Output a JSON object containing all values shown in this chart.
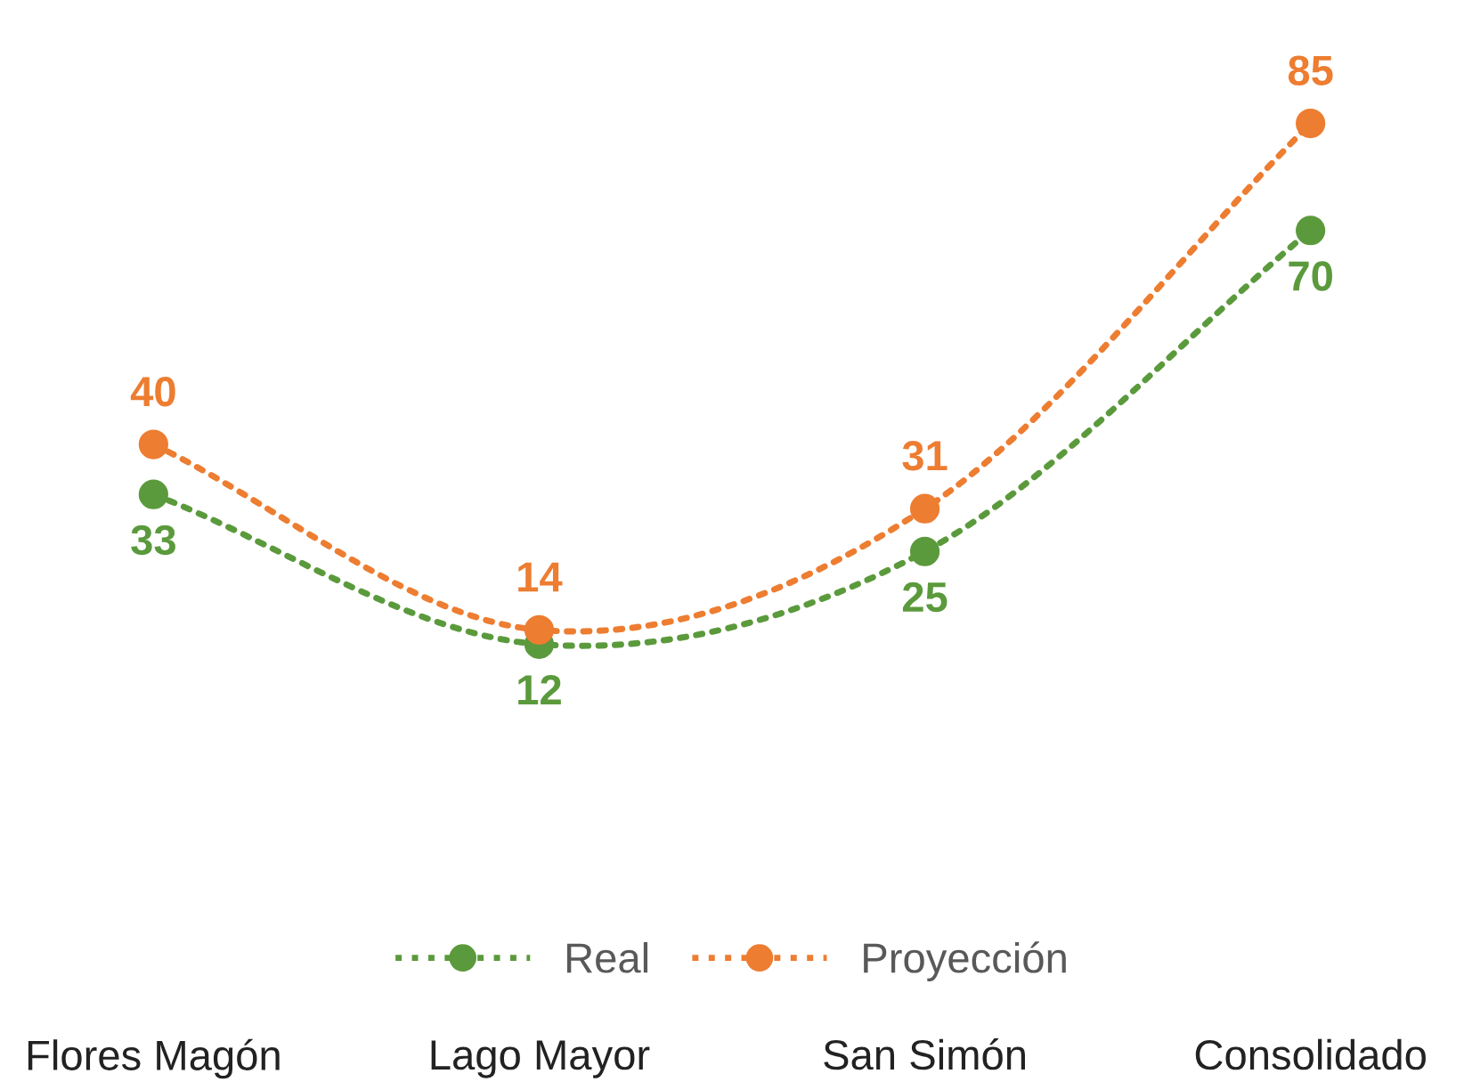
{
  "chart_data": {
    "type": "line",
    "categories": [
      "Flores Magón",
      "Lago Mayor",
      "San Simón",
      "Consolidado"
    ],
    "series": [
      {
        "name": "Real",
        "color": "#5b9a3c",
        "values": [
          33,
          12,
          25,
          70
        ]
      },
      {
        "name": "Proyección",
        "color": "#ed7d31",
        "values": [
          40,
          14,
          31,
          85
        ]
      }
    ],
    "data_labels": true,
    "tick_labels": "x",
    "marker": "circle",
    "line_style": "dotted",
    "legend": "bottom",
    "grid": false
  }
}
